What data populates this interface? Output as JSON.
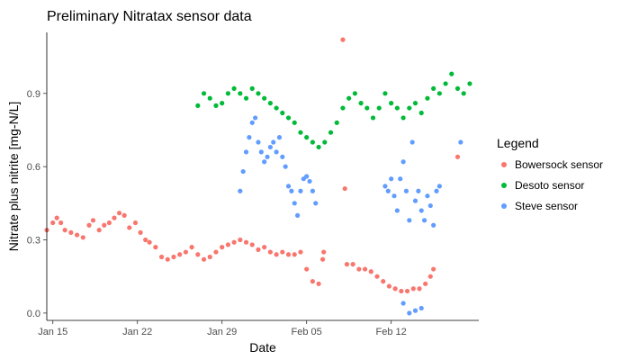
{
  "chart_data": {
    "type": "scatter",
    "title": "Preliminary Nitratax sensor data",
    "xlabel": "Date",
    "ylabel": "Nitrate plus nitrite [mg-N/L]",
    "x_ticks": [
      "Jan 15",
      "Jan 22",
      "Jan 29",
      "Feb 05",
      "Feb 12"
    ],
    "x_tick_dates": [
      "2018-01-15",
      "2018-01-22",
      "2018-01-29",
      "2018-02-05",
      "2018-02-12"
    ],
    "xlim": [
      "2018-01-14T12:00",
      "2018-02-19T06:00"
    ],
    "y_ticks": [
      "0.0",
      "0.3",
      "0.6",
      "0.9"
    ],
    "ylim": [
      -0.03,
      1.15
    ],
    "grid": false,
    "legend": {
      "title": "Legend",
      "position": "right"
    },
    "series": [
      {
        "name": "Bowersock sensor",
        "color": "#F8766D",
        "points": [
          [
            "2018-01-14T12:00",
            0.34
          ],
          [
            "2018-01-15T00:00",
            0.37
          ],
          [
            "2018-01-15T08:00",
            0.39
          ],
          [
            "2018-01-15T16:00",
            0.37
          ],
          [
            "2018-01-16T00:00",
            0.34
          ],
          [
            "2018-01-16T12:00",
            0.33
          ],
          [
            "2018-01-17T00:00",
            0.32
          ],
          [
            "2018-01-17T12:00",
            0.31
          ],
          [
            "2018-01-18T00:00",
            0.36
          ],
          [
            "2018-01-18T08:00",
            0.38
          ],
          [
            "2018-01-18T20:00",
            0.34
          ],
          [
            "2018-01-19T06:00",
            0.36
          ],
          [
            "2018-01-19T16:00",
            0.37
          ],
          [
            "2018-01-20T02:00",
            0.39
          ],
          [
            "2018-01-20T12:00",
            0.41
          ],
          [
            "2018-01-20T22:00",
            0.4
          ],
          [
            "2018-01-21T08:00",
            0.35
          ],
          [
            "2018-01-21T20:00",
            0.37
          ],
          [
            "2018-01-22T06:00",
            0.33
          ],
          [
            "2018-01-22T16:00",
            0.3
          ],
          [
            "2018-01-23T00:00",
            0.29
          ],
          [
            "2018-01-23T12:00",
            0.27
          ],
          [
            "2018-01-24T00:00",
            0.23
          ],
          [
            "2018-01-24T12:00",
            0.22
          ],
          [
            "2018-01-25T00:00",
            0.23
          ],
          [
            "2018-01-25T12:00",
            0.24
          ],
          [
            "2018-01-26T00:00",
            0.25
          ],
          [
            "2018-01-26T12:00",
            0.27
          ],
          [
            "2018-01-27T00:00",
            0.24
          ],
          [
            "2018-01-27T12:00",
            0.22
          ],
          [
            "2018-01-28T00:00",
            0.23
          ],
          [
            "2018-01-28T12:00",
            0.25
          ],
          [
            "2018-01-29T00:00",
            0.27
          ],
          [
            "2018-01-29T12:00",
            0.28
          ],
          [
            "2018-01-30T00:00",
            0.29
          ],
          [
            "2018-01-30T12:00",
            0.3
          ],
          [
            "2018-01-31T00:00",
            0.29
          ],
          [
            "2018-01-31T12:00",
            0.28
          ],
          [
            "2018-02-01T00:00",
            0.26
          ],
          [
            "2018-02-01T12:00",
            0.27
          ],
          [
            "2018-02-02T00:00",
            0.25
          ],
          [
            "2018-02-02T12:00",
            0.24
          ],
          [
            "2018-02-03T00:00",
            0.25
          ],
          [
            "2018-02-03T12:00",
            0.24
          ],
          [
            "2018-02-04T00:00",
            0.24
          ],
          [
            "2018-02-04T12:00",
            0.25
          ],
          [
            "2018-02-05T00:00",
            0.18
          ],
          [
            "2018-02-05T12:00",
            0.13
          ],
          [
            "2018-02-06T00:00",
            0.12
          ],
          [
            "2018-02-06T08:00",
            0.22
          ],
          [
            "2018-02-06T10:00",
            0.25
          ],
          [
            "2018-02-08T00:00",
            1.12
          ],
          [
            "2018-02-08T04:00",
            0.51
          ],
          [
            "2018-02-08T08:00",
            0.2
          ],
          [
            "2018-02-08T20:00",
            0.2
          ],
          [
            "2018-02-09T08:00",
            0.18
          ],
          [
            "2018-02-09T20:00",
            0.18
          ],
          [
            "2018-02-10T08:00",
            0.17
          ],
          [
            "2018-02-10T20:00",
            0.15
          ],
          [
            "2018-02-11T08:00",
            0.13
          ],
          [
            "2018-02-11T20:00",
            0.11
          ],
          [
            "2018-02-12T08:00",
            0.1
          ],
          [
            "2018-02-12T20:00",
            0.09
          ],
          [
            "2018-02-13T08:00",
            0.09
          ],
          [
            "2018-02-13T20:00",
            0.1
          ],
          [
            "2018-02-14T08:00",
            0.1
          ],
          [
            "2018-02-14T20:00",
            0.12
          ],
          [
            "2018-02-15T06:00",
            0.15
          ],
          [
            "2018-02-15T12:00",
            0.18
          ],
          [
            "2018-02-17T12:00",
            0.64
          ]
        ]
      },
      {
        "name": "Desoto sensor",
        "color": "#00BA38",
        "points": [
          [
            "2018-01-27T00:00",
            0.85
          ],
          [
            "2018-01-27T12:00",
            0.9
          ],
          [
            "2018-01-28T00:00",
            0.88
          ],
          [
            "2018-01-28T12:00",
            0.85
          ],
          [
            "2018-01-29T00:00",
            0.86
          ],
          [
            "2018-01-29T12:00",
            0.9
          ],
          [
            "2018-01-30T00:00",
            0.92
          ],
          [
            "2018-01-30T12:00",
            0.9
          ],
          [
            "2018-01-31T00:00",
            0.88
          ],
          [
            "2018-01-31T12:00",
            0.92
          ],
          [
            "2018-02-01T00:00",
            0.9
          ],
          [
            "2018-02-01T12:00",
            0.88
          ],
          [
            "2018-02-02T00:00",
            0.86
          ],
          [
            "2018-02-02T12:00",
            0.84
          ],
          [
            "2018-02-03T00:00",
            0.82
          ],
          [
            "2018-02-03T12:00",
            0.8
          ],
          [
            "2018-02-04T00:00",
            0.78
          ],
          [
            "2018-02-04T12:00",
            0.74
          ],
          [
            "2018-02-05T00:00",
            0.72
          ],
          [
            "2018-02-05T12:00",
            0.7
          ],
          [
            "2018-02-06T00:00",
            0.68
          ],
          [
            "2018-02-06T12:00",
            0.7
          ],
          [
            "2018-02-07T00:00",
            0.74
          ],
          [
            "2018-02-07T12:00",
            0.78
          ],
          [
            "2018-02-08T00:00",
            0.84
          ],
          [
            "2018-02-08T12:00",
            0.88
          ],
          [
            "2018-02-09T00:00",
            0.9
          ],
          [
            "2018-02-09T12:00",
            0.86
          ],
          [
            "2018-02-10T00:00",
            0.84
          ],
          [
            "2018-02-10T12:00",
            0.8
          ],
          [
            "2018-02-11T00:00",
            0.84
          ],
          [
            "2018-02-11T12:00",
            0.9
          ],
          [
            "2018-02-12T00:00",
            0.86
          ],
          [
            "2018-02-12T12:00",
            0.84
          ],
          [
            "2018-02-13T00:00",
            0.8
          ],
          [
            "2018-02-13T12:00",
            0.84
          ],
          [
            "2018-02-14T00:00",
            0.86
          ],
          [
            "2018-02-14T12:00",
            0.82
          ],
          [
            "2018-02-15T00:00",
            0.88
          ],
          [
            "2018-02-15T12:00",
            0.92
          ],
          [
            "2018-02-16T00:00",
            0.9
          ],
          [
            "2018-02-16T12:00",
            0.94
          ],
          [
            "2018-02-17T00:00",
            0.98
          ],
          [
            "2018-02-17T12:00",
            0.92
          ],
          [
            "2018-02-18T00:00",
            0.9
          ],
          [
            "2018-02-18T12:00",
            0.94
          ]
        ]
      },
      {
        "name": "Steve sensor",
        "color": "#619CFF",
        "points": [
          [
            "2018-01-30T12:00",
            0.5
          ],
          [
            "2018-01-30T18:00",
            0.58
          ],
          [
            "2018-01-31T00:00",
            0.66
          ],
          [
            "2018-01-31T06:00",
            0.72
          ],
          [
            "2018-01-31T12:00",
            0.78
          ],
          [
            "2018-01-31T18:00",
            0.8
          ],
          [
            "2018-02-01T00:00",
            0.7
          ],
          [
            "2018-02-01T06:00",
            0.66
          ],
          [
            "2018-02-01T12:00",
            0.62
          ],
          [
            "2018-02-01T18:00",
            0.64
          ],
          [
            "2018-02-02T00:00",
            0.68
          ],
          [
            "2018-02-02T06:00",
            0.7
          ],
          [
            "2018-02-02T12:00",
            0.66
          ],
          [
            "2018-02-02T18:00",
            0.72
          ],
          [
            "2018-02-03T00:00",
            0.64
          ],
          [
            "2018-02-03T06:00",
            0.6
          ],
          [
            "2018-02-03T12:00",
            0.52
          ],
          [
            "2018-02-03T18:00",
            0.5
          ],
          [
            "2018-02-04T00:00",
            0.45
          ],
          [
            "2018-02-04T06:00",
            0.4
          ],
          [
            "2018-02-04T12:00",
            0.5
          ],
          [
            "2018-02-04T18:00",
            0.55
          ],
          [
            "2018-02-05T00:00",
            0.56
          ],
          [
            "2018-02-05T06:00",
            0.54
          ],
          [
            "2018-02-05T12:00",
            0.5
          ],
          [
            "2018-02-05T18:00",
            0.45
          ],
          [
            "2018-02-11T12:00",
            0.52
          ],
          [
            "2018-02-11T18:00",
            0.5
          ],
          [
            "2018-02-12T00:00",
            0.55
          ],
          [
            "2018-02-12T06:00",
            0.48
          ],
          [
            "2018-02-12T12:00",
            0.42
          ],
          [
            "2018-02-12T18:00",
            0.55
          ],
          [
            "2018-02-13T00:00",
            0.62
          ],
          [
            "2018-02-13T06:00",
            0.5
          ],
          [
            "2018-02-13T12:00",
            0.38
          ],
          [
            "2018-02-13T18:00",
            0.7
          ],
          [
            "2018-02-14T00:00",
            0.46
          ],
          [
            "2018-02-14T06:00",
            0.5
          ],
          [
            "2018-02-14T12:00",
            0.42
          ],
          [
            "2018-02-14T18:00",
            0.38
          ],
          [
            "2018-02-15T00:00",
            0.48
          ],
          [
            "2018-02-15T06:00",
            0.44
          ],
          [
            "2018-02-15T12:00",
            0.36
          ],
          [
            "2018-02-15T18:00",
            0.5
          ],
          [
            "2018-02-16T00:00",
            0.52
          ],
          [
            "2018-02-13T00:00",
            0.04
          ],
          [
            "2018-02-13T12:00",
            0.0
          ],
          [
            "2018-02-14T00:00",
            0.01
          ],
          [
            "2018-02-14T12:00",
            0.02
          ],
          [
            "2018-02-17T18:00",
            0.7
          ]
        ]
      }
    ]
  }
}
